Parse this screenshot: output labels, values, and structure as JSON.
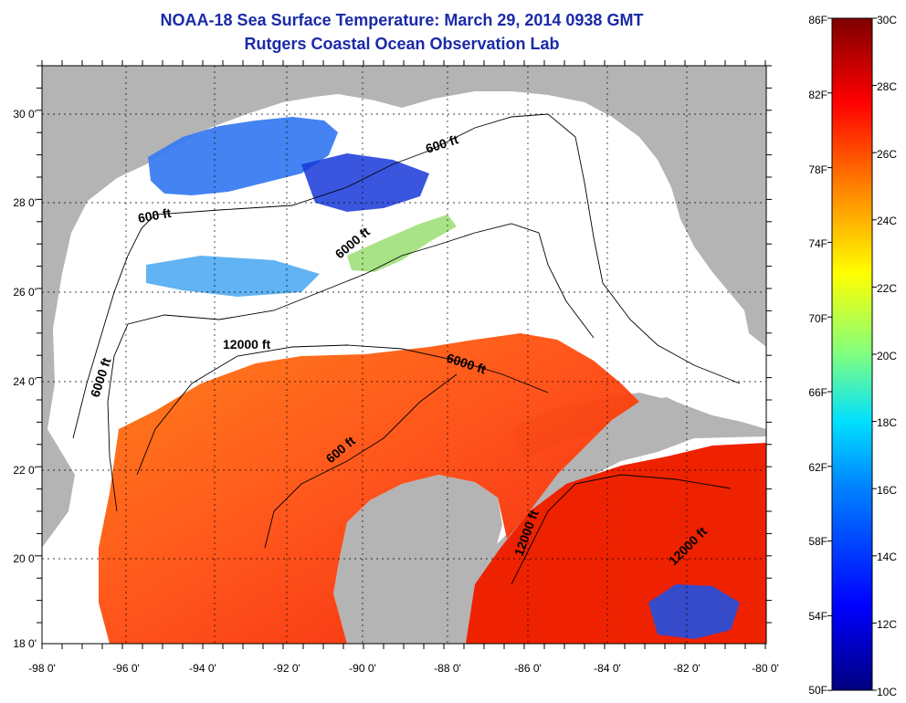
{
  "title": "NOAA-18 Sea Surface Temperature:  March 29, 2014 0938 GMT",
  "subtitle": "Rutgers Coastal Ocean Observation Lab",
  "map": {
    "lon_ticks": [
      "-98 0'",
      "-96 0'",
      "-94 0'",
      "-92 0'",
      "-90 0'",
      "-88 0'",
      "-86 0'",
      "-84 0'",
      "-82 0'",
      "-80 0'"
    ],
    "lat_ticks": [
      "30 0'",
      "28 0'",
      "26 0'",
      "24 0'",
      "22 0'",
      "20 0'",
      "18 0'"
    ],
    "lon_range": [
      -98,
      -80
    ],
    "lat_range": [
      18,
      31
    ],
    "contour_labels": [
      "600 ft",
      "600 ft",
      "6000 ft",
      "12000 ft",
      "6000 ft",
      "6000 ft",
      "600 ft",
      "12000 ft",
      "12000 ft"
    ]
  },
  "colorbar": {
    "fahrenheit_labels": [
      "86F",
      "82F",
      "78F",
      "74F",
      "70F",
      "66F",
      "62F",
      "58F",
      "54F",
      "50F"
    ],
    "celsius_labels": [
      "30C",
      "28C",
      "26C",
      "24C",
      "22C",
      "20C",
      "18C",
      "16C",
      "14C",
      "12C",
      "10C"
    ],
    "range_c": [
      10,
      30
    ],
    "colors": [
      "#00007f",
      "#0000ff",
      "#0080ff",
      "#00ffff",
      "#80ff80",
      "#ffff00",
      "#ff8000",
      "#ff0000",
      "#7f0000"
    ]
  },
  "colors": {
    "land": "#b4b4b4",
    "cloud": "#ffffff",
    "title": "#1a2aa8"
  }
}
